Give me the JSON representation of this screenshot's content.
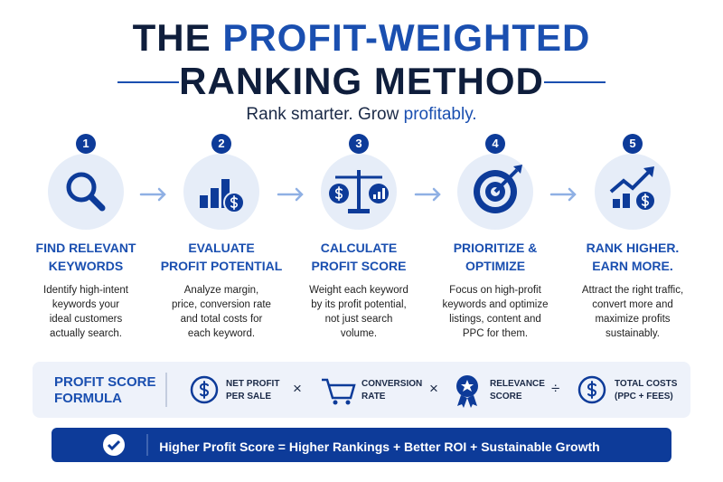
{
  "header": {
    "title_parts": [
      "THE",
      "PROFIT-WEIGHTED"
    ],
    "title_line2": "RANKING METHOD",
    "subtitle_parts": [
      "Rank smarter. Grow",
      "profitably."
    ]
  },
  "steps": [
    {
      "number": "1",
      "title": [
        "FIND RELEVANT",
        "KEYWORDS"
      ],
      "description": [
        "Identify high-intent",
        "keywords your",
        "ideal customers",
        "actually search."
      ]
    },
    {
      "number": "2",
      "title": [
        "EVALUATE",
        "PROFIT POTENTIAL"
      ],
      "description": [
        "Analyze margin,",
        "price, conversion rate",
        "and total costs for",
        "each keyword."
      ]
    },
    {
      "number": "3",
      "title": [
        "CALCULATE",
        "PROFIT SCORE"
      ],
      "description": [
        "Weight each keyword",
        "by its profit potential,",
        "not just search",
        "volume."
      ]
    },
    {
      "number": "4",
      "title": [
        "PRIORITIZE &",
        "OPTIMIZE"
      ],
      "description": [
        "Focus on high-profit",
        "keywords and optimize",
        "listings, content and",
        "PPC for them."
      ]
    },
    {
      "number": "5",
      "title": [
        "RANK HIGHER.",
        "EARN MORE."
      ],
      "description": [
        "Attract the right traffic,",
        "convert more and",
        "maximize profits",
        "sustainably."
      ]
    }
  ],
  "formula": {
    "label": [
      "PROFIT SCORE",
      "FORMULA"
    ],
    "terms": [
      {
        "label": [
          "NET PROFIT",
          "PER SALE"
        ]
      },
      {
        "label": [
          "CONVERSION",
          "RATE"
        ]
      },
      {
        "label": [
          "RELEVANCE",
          "SCORE"
        ]
      },
      {
        "label": [
          "TOTAL COSTS",
          "(PPC + FEES)"
        ]
      }
    ],
    "operators": [
      "×",
      "×",
      "÷"
    ]
  },
  "banner": {
    "text": "Higher Profit Score = Higher Rankings + Better ROI + Sustainable Growth"
  }
}
